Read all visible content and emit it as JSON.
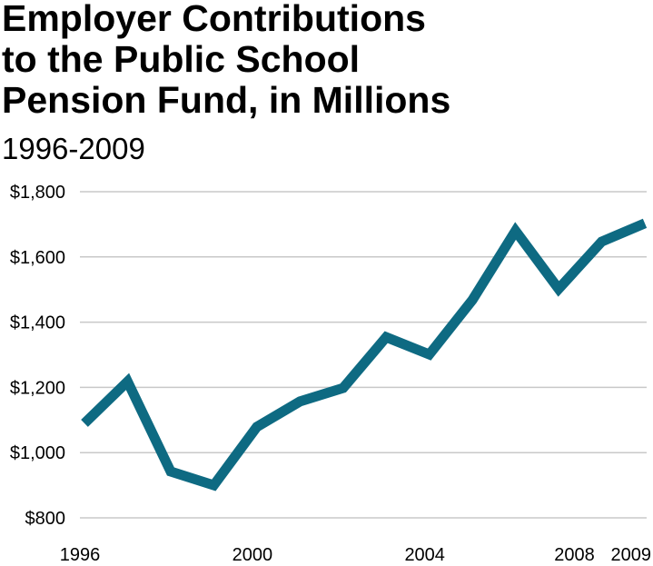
{
  "chart_data": {
    "type": "line",
    "title_lines": [
      "Employer Contributions",
      "to the Public School",
      "Pension Fund, in Millions"
    ],
    "subtitle": "1996-2009",
    "x": [
      1996,
      1997,
      1998,
      1999,
      2000,
      2001,
      2002,
      2003,
      2004,
      2005,
      2006,
      2007,
      2008,
      2009
    ],
    "series": [
      {
        "color": "#0e6a82",
        "values": [
          1090,
          1218,
          942,
          900,
          1079,
          1157,
          1198,
          1354,
          1301,
          1468,
          1680,
          1502,
          1647,
          1703
        ]
      }
    ],
    "xlim": [
      1996,
      2009
    ],
    "xticks": [
      1996,
      2000,
      2004,
      2008,
      2009
    ],
    "ylim": [
      800,
      1800
    ],
    "yticks": [
      {
        "value": 800,
        "label": "$800"
      },
      {
        "value": 1000,
        "label": "$1,000"
      },
      {
        "value": 1200,
        "label": "$1,200"
      },
      {
        "value": 1400,
        "label": "$1,400"
      },
      {
        "value": 1600,
        "label": "$1,600"
      },
      {
        "value": 1800,
        "label": "$1,800"
      }
    ],
    "grid": true
  }
}
